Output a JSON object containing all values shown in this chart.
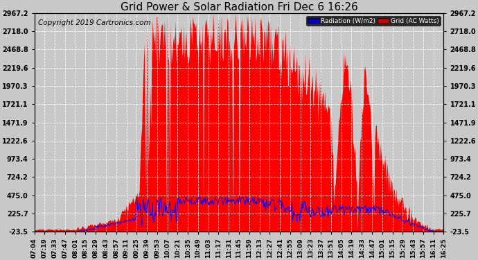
{
  "title": "Grid Power & Solar Radiation Fri Dec 6 16:26",
  "copyright": "Copyright 2019 Cartronics.com",
  "legend_radiation_label": "Radiation (W/m2)",
  "legend_grid_label": "Grid (AC Watts)",
  "legend_radiation_bg": "#0000cc",
  "legend_grid_bg": "#cc0000",
  "legend_text_color": "#ffffff",
  "background_color": "#c8c8c8",
  "plot_bg_color": "#c8c8c8",
  "grid_color": "#ffffff",
  "y_tick_values": [
    -23.5,
    225.7,
    475.0,
    724.2,
    973.4,
    1222.6,
    1471.9,
    1721.1,
    1970.3,
    2219.6,
    2468.8,
    2718.0,
    2967.2
  ],
  "y_min": -23.5,
  "y_max": 2967.2,
  "radiation_color": "#ff0000",
  "grid_power_color": "#0000ff",
  "title_fontsize": 11,
  "tick_fontsize": 7,
  "copyright_fontsize": 7.5,
  "x_tick_labels": [
    "07:04",
    "07:19",
    "07:33",
    "07:47",
    "08:01",
    "08:15",
    "08:29",
    "08:43",
    "08:57",
    "09:11",
    "09:25",
    "09:39",
    "09:53",
    "10:07",
    "10:21",
    "10:35",
    "10:49",
    "11:03",
    "11:17",
    "11:31",
    "11:45",
    "11:59",
    "12:13",
    "12:27",
    "12:41",
    "12:55",
    "13:09",
    "13:23",
    "13:37",
    "13:51",
    "14:05",
    "14:19",
    "14:33",
    "14:47",
    "15:01",
    "15:15",
    "15:29",
    "15:43",
    "15:57",
    "16:11",
    "16:25"
  ]
}
